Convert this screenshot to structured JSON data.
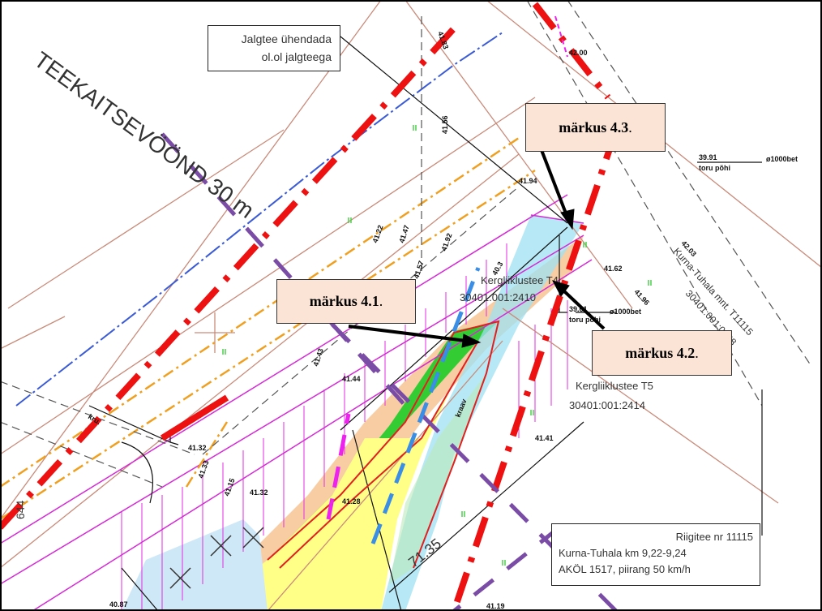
{
  "map": {
    "zone_label": "TEEKAITSEVÖÖND 30 m",
    "note_box": {
      "line1": "Jalgtee ühendada",
      "line2": "ol.ol jalgteega"
    },
    "callouts": [
      {
        "text": "märkus 4.3",
        "suffix": "."
      },
      {
        "text": "märkus 4.1",
        "suffix": "."
      },
      {
        "text": "märkus 4.2",
        "suffix": "."
      }
    ],
    "parcels": [
      {
        "name": "Kergliiklustee T4",
        "code": "30401:001:2410"
      },
      {
        "name": "Kergliiklustee T5",
        "code": "30401:001:2414"
      },
      {
        "name": "Kurna-Tuhala mnt. T11115",
        "code": "30401:001:0228"
      }
    ],
    "pipes": [
      {
        "level": "39.91",
        "note": "toru põhi",
        "diameter": "ø1000bet"
      },
      {
        "level": "39.61",
        "note": "toru põhi",
        "diameter": "ø1000bet"
      }
    ],
    "info_box": {
      "line1": "Riigitee nr 11115",
      "line2": "Kurna-Tuhala km 9,22-9,24",
      "line3": "AKÖL 1517, piirang 50 km/h"
    },
    "dimension": "71.35",
    "ditch_label": "kraav",
    "road_label": "kru.",
    "side_label": "644",
    "elevations": [
      "42.00",
      "41.94",
      "41.62",
      "41.96",
      "41.57",
      "41.44",
      "41.43",
      "41.32",
      "41.33",
      "41.15",
      "41.32",
      "41.28",
      "41.41",
      "41.19",
      "40.87",
      "41.56",
      "40.3",
      "41.83",
      "41.92",
      "41.22",
      "41.47",
      "42.03"
    ]
  }
}
